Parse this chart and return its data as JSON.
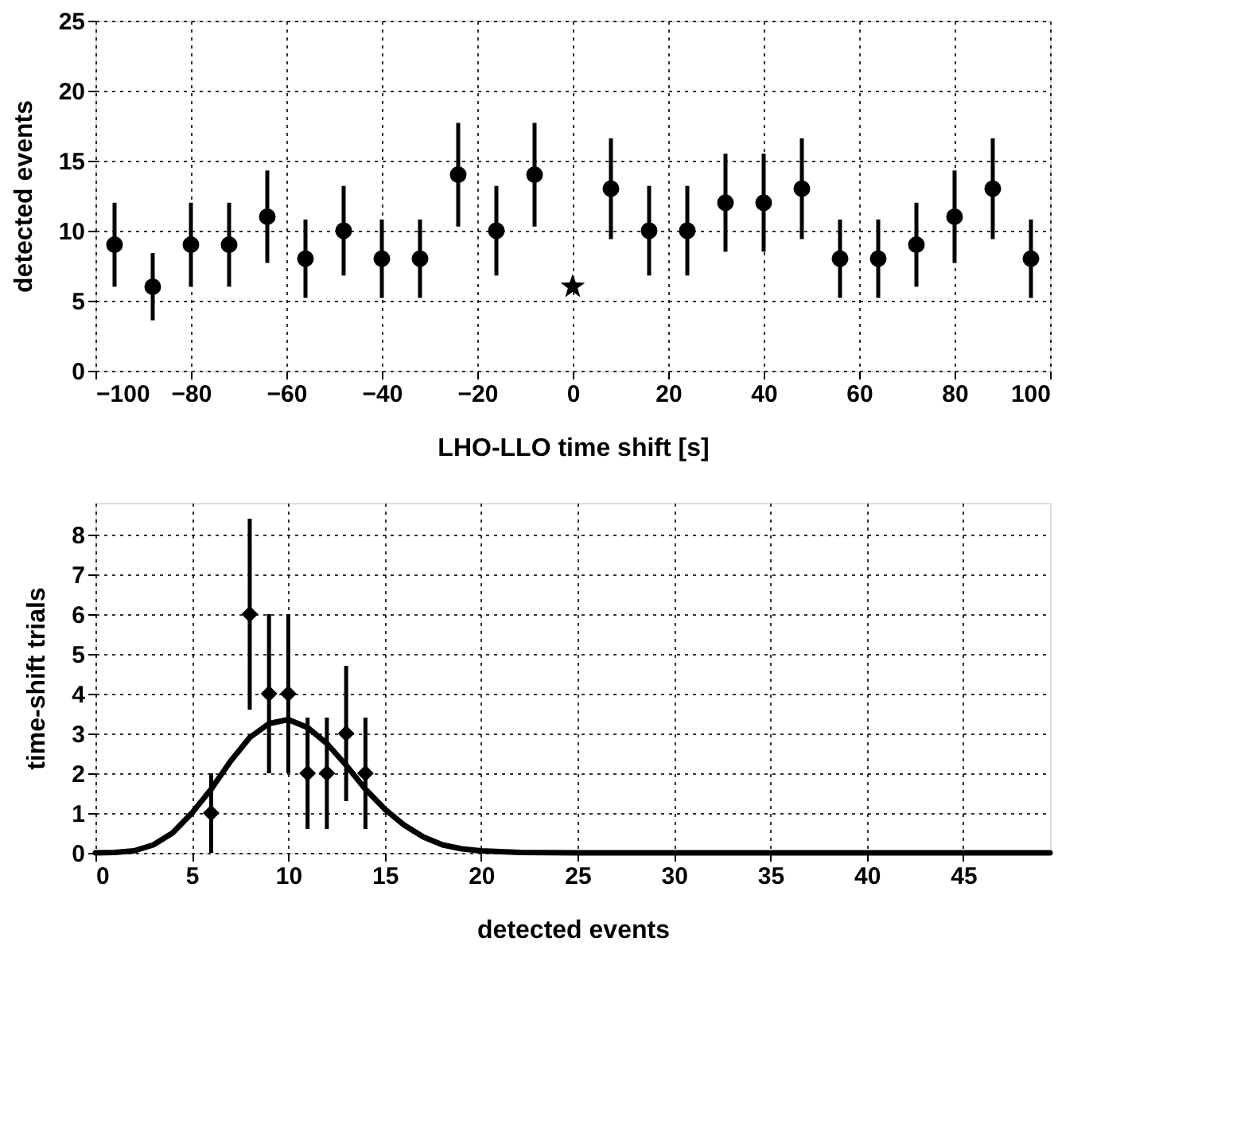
{
  "chart_data": [
    {
      "type": "scatter",
      "xlabel": "LHO-LLO time shift [s]",
      "ylabel": "detected events",
      "xlim": [
        -100,
        100
      ],
      "xticks": [
        -100,
        -80,
        -60,
        -40,
        -20,
        0,
        20,
        40,
        60,
        80,
        100
      ],
      "ylim": [
        0,
        25
      ],
      "yticks": [
        0,
        5,
        10,
        15,
        20,
        25
      ],
      "grid": true,
      "series": [
        {
          "type": "scatter",
          "marker": "circle",
          "color": "#000000",
          "x": [
            -96,
            -88,
            -80,
            -72,
            -64,
            -56,
            -48,
            -40,
            -32,
            -24,
            -16,
            -8,
            8,
            16,
            24,
            32,
            40,
            48,
            56,
            64,
            72,
            80,
            88,
            96
          ],
          "values": [
            9,
            6,
            9,
            9,
            11,
            8,
            10,
            8,
            8,
            14,
            10,
            14,
            13,
            10,
            10,
            12,
            12,
            13,
            8,
            8,
            9,
            11,
            13,
            8
          ],
          "errors": [
            3,
            2.4,
            3,
            3,
            3.3,
            2.8,
            3.2,
            2.8,
            2.8,
            3.7,
            3.2,
            3.7,
            3.6,
            3.2,
            3.2,
            3.5,
            3.5,
            3.6,
            2.8,
            2.8,
            3,
            3.3,
            3.6,
            2.8
          ]
        },
        {
          "type": "scatter",
          "marker": "star",
          "color": "#000000",
          "x": [
            0
          ],
          "values": [
            6
          ]
        }
      ]
    },
    {
      "type": "scatter",
      "xlabel": "detected events",
      "ylabel": "time-shift trials",
      "xlim": [
        0,
        49.5
      ],
      "xticks": [
        0,
        5,
        10,
        15,
        20,
        25,
        30,
        35,
        40,
        45
      ],
      "ylim": [
        0,
        8.8
      ],
      "yticks": [
        0,
        1,
        2,
        3,
        4,
        5,
        6,
        7,
        8
      ],
      "grid": true,
      "series": [
        {
          "type": "scatter",
          "marker": "diamond",
          "color": "#000000",
          "x": [
            6,
            8,
            9,
            10,
            11,
            12,
            13,
            14
          ],
          "values": [
            1,
            6,
            4,
            4,
            2,
            2,
            3,
            2
          ],
          "errors": [
            1,
            2.4,
            2,
            2,
            1.4,
            1.4,
            1.7,
            1.4
          ]
        },
        {
          "type": "line",
          "marker": "none",
          "line_style": "solid",
          "color": "#000000",
          "x": [
            0,
            1,
            2,
            3,
            4,
            5,
            6,
            7,
            8,
            9,
            10,
            11,
            12,
            13,
            14,
            15,
            16,
            17,
            18,
            19,
            20,
            22,
            25,
            30,
            49.5
          ],
          "values": [
            0,
            0.01,
            0.05,
            0.2,
            0.5,
            1,
            1.6,
            2.3,
            2.9,
            3.25,
            3.35,
            3.15,
            2.75,
            2.2,
            1.6,
            1.1,
            0.7,
            0.4,
            0.2,
            0.1,
            0.05,
            0.01,
            0,
            0,
            0
          ]
        }
      ]
    }
  ]
}
